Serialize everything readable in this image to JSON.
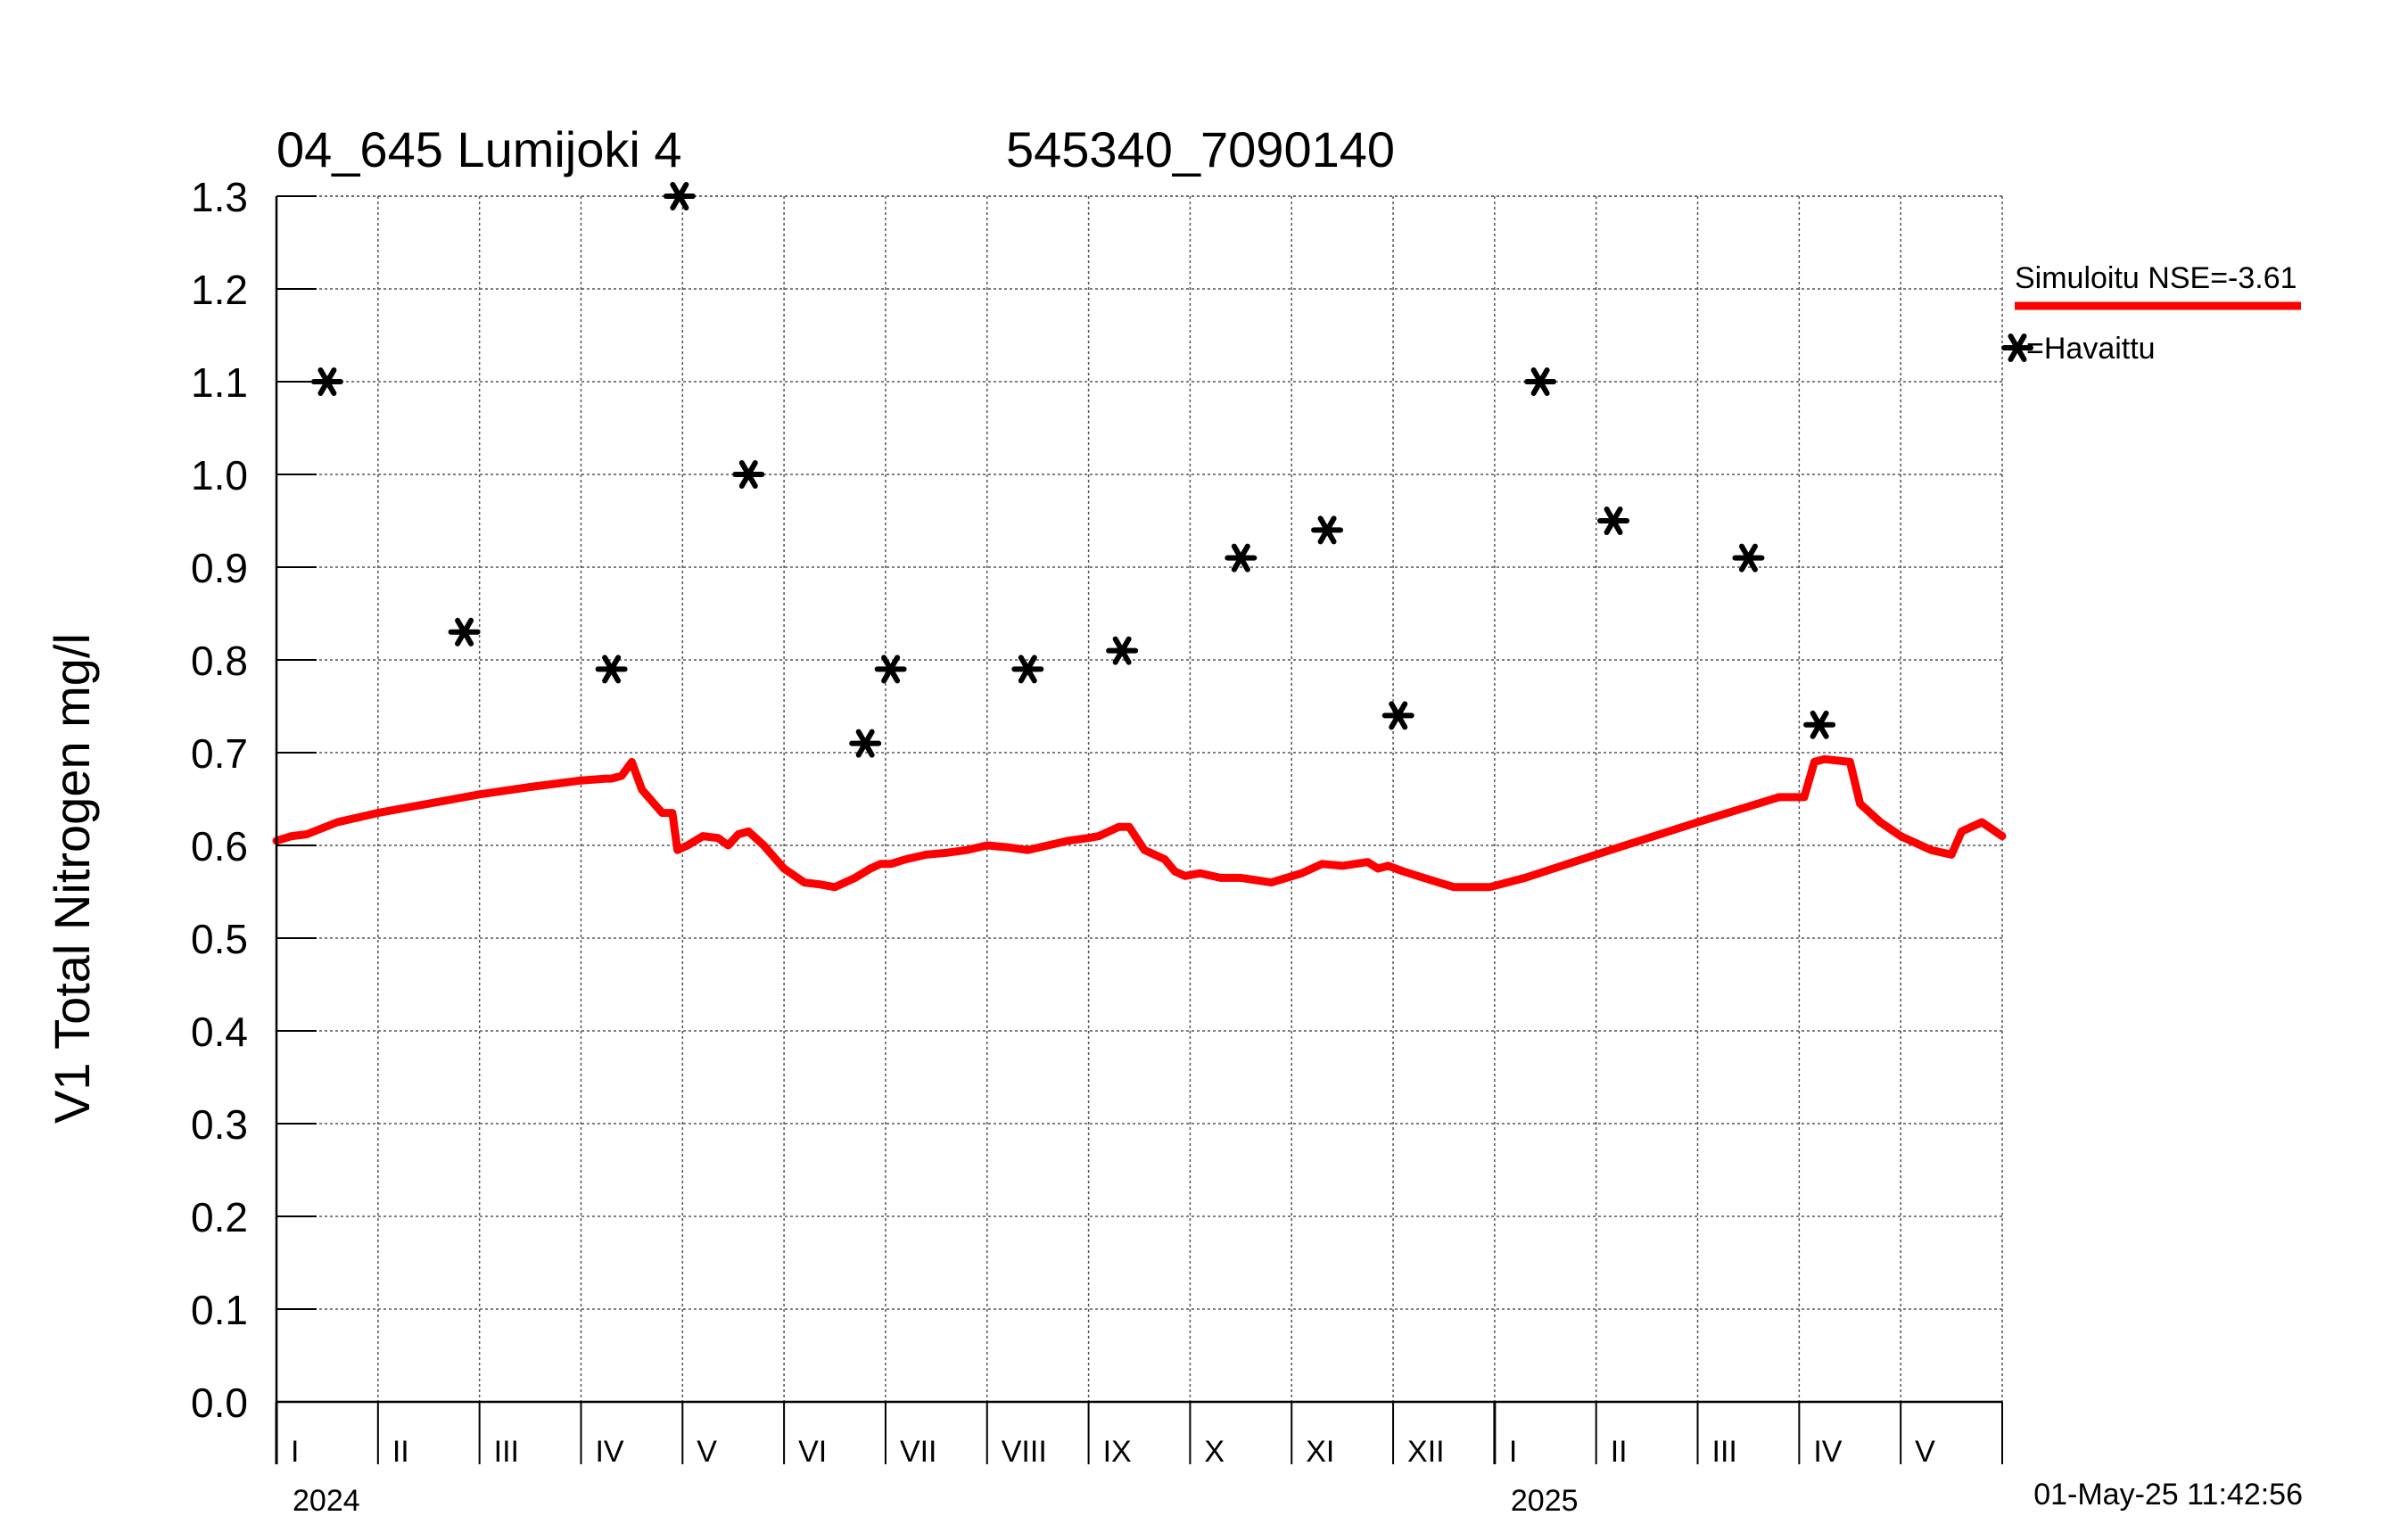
{
  "header": {
    "station_title": "04_645 Lumijoki 4",
    "coordinates": "545340_7090140"
  },
  "footer": {
    "timestamp": "01-May-25 11:42:56"
  },
  "legend": {
    "simulated_label": "Simuloitu NSE=-3.61",
    "observed_label": "=Havaittu"
  },
  "colors": {
    "simulated": "#ff0000",
    "observed": "#000000",
    "grid": "#555555"
  },
  "chart_data": {
    "type": "line",
    "title": "04_645 Lumijoki 4",
    "subtitle": "545340_7090140",
    "ylabel": "V1 Total Nitrogen mg/l",
    "xlabel": "",
    "ylim": [
      0.0,
      1.3
    ],
    "y_ticks": [
      "0.0",
      "0.1",
      "0.2",
      "0.3",
      "0.4",
      "0.5",
      "0.6",
      "0.7",
      "0.8",
      "0.9",
      "1.0",
      "1.1",
      "1.2",
      "1.3"
    ],
    "x_unit": "month index from 2024-01-01",
    "xlim": [
      0,
      17
    ],
    "month_labels": [
      "I",
      "II",
      "III",
      "IV",
      "V",
      "VI",
      "VII",
      "VIII",
      "IX",
      "X",
      "XI",
      "XII",
      "I",
      "II",
      "III",
      "IV",
      "V"
    ],
    "year_labels": [
      {
        "label": "2024",
        "x": 0
      },
      {
        "label": "2025",
        "x": 12
      }
    ],
    "grid": true,
    "legend_position": "right",
    "series": [
      {
        "name": "Simuloitu NSE=-3.61",
        "style": "line",
        "x": [
          0,
          0.15,
          0.3,
          0.6,
          1,
          1.5,
          2,
          2.5,
          3,
          3.25,
          3.3,
          3.4,
          3.5,
          3.6,
          3.8,
          3.9,
          3.95,
          4.05,
          4.2,
          4.35,
          4.45,
          4.55,
          4.65,
          4.8,
          5,
          5.2,
          5.35,
          5.5,
          5.7,
          5.85,
          5.95,
          6.05,
          6.2,
          6.4,
          6.6,
          6.8,
          7,
          7.2,
          7.4,
          7.6,
          7.8,
          8,
          8.1,
          8.3,
          8.4,
          8.55,
          8.75,
          8.85,
          8.95,
          9.1,
          9.3,
          9.5,
          9.8,
          10.1,
          10.3,
          10.5,
          10.75,
          10.85,
          10.95,
          11.1,
          11.3,
          11.6,
          11.95,
          12.3,
          13,
          14,
          14.8,
          15.05,
          15.15,
          15.25,
          15.5,
          15.6,
          15.8,
          16,
          16.3,
          16.5,
          16.6,
          16.8,
          17
        ],
        "values": [
          0.605,
          0.61,
          0.612,
          0.625,
          0.635,
          0.645,
          0.655,
          0.663,
          0.67,
          0.672,
          0.672,
          0.675,
          0.69,
          0.66,
          0.635,
          0.635,
          0.595,
          0.6,
          0.61,
          0.608,
          0.6,
          0.612,
          0.615,
          0.6,
          0.575,
          0.56,
          0.558,
          0.555,
          0.565,
          0.575,
          0.58,
          0.58,
          0.585,
          0.59,
          0.592,
          0.595,
          0.6,
          0.598,
          0.595,
          0.6,
          0.605,
          0.608,
          0.61,
          0.62,
          0.62,
          0.595,
          0.585,
          0.572,
          0.567,
          0.57,
          0.565,
          0.565,
          0.56,
          0.57,
          0.58,
          0.578,
          0.582,
          0.575,
          0.578,
          0.572,
          0.565,
          0.555,
          0.555,
          0.565,
          0.59,
          0.625,
          0.652,
          0.652,
          0.69,
          0.693,
          0.69,
          0.645,
          0.625,
          0.61,
          0.595,
          0.59,
          0.615,
          0.625,
          0.61
        ]
      },
      {
        "name": "Havaittu",
        "style": "markers",
        "x": [
          0.5,
          1.85,
          3.3,
          3.97,
          4.65,
          5.8,
          6.05,
          7.4,
          8.33,
          9.5,
          10.35,
          11.05,
          12.45,
          13.17,
          14.5,
          15.2
        ],
        "values": [
          1.1,
          0.83,
          0.79,
          1.3,
          1.0,
          0.71,
          0.79,
          0.79,
          0.81,
          0.91,
          0.94,
          0.74,
          1.1,
          0.95,
          0.91,
          0.73
        ]
      }
    ]
  }
}
